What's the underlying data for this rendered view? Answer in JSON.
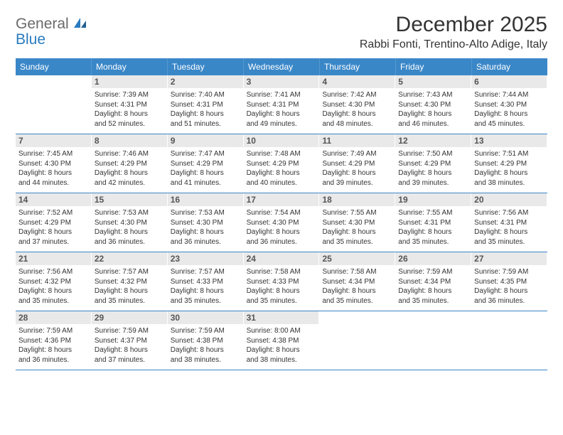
{
  "logo": {
    "text1": "General",
    "text2": "Blue"
  },
  "colors": {
    "header_bg": "#3a87c8",
    "header_text": "#ffffff",
    "daynum_bg": "#e9e9e9",
    "daynum_text": "#555555",
    "text": "#333333",
    "logo_gray": "#6a6a6a",
    "logo_blue": "#2a7bbf",
    "rule": "#3a87c8"
  },
  "title": "December 2025",
  "subtitle": "Rabbi Fonti, Trentino-Alto Adige, Italy",
  "day_names": [
    "Sunday",
    "Monday",
    "Tuesday",
    "Wednesday",
    "Thursday",
    "Friday",
    "Saturday"
  ],
  "weeks": [
    [
      null,
      {
        "n": "1",
        "sr": "Sunrise: 7:39 AM",
        "ss": "Sunset: 4:31 PM",
        "d1": "Daylight: 8 hours",
        "d2": "and 52 minutes."
      },
      {
        "n": "2",
        "sr": "Sunrise: 7:40 AM",
        "ss": "Sunset: 4:31 PM",
        "d1": "Daylight: 8 hours",
        "d2": "and 51 minutes."
      },
      {
        "n": "3",
        "sr": "Sunrise: 7:41 AM",
        "ss": "Sunset: 4:31 PM",
        "d1": "Daylight: 8 hours",
        "d2": "and 49 minutes."
      },
      {
        "n": "4",
        "sr": "Sunrise: 7:42 AM",
        "ss": "Sunset: 4:30 PM",
        "d1": "Daylight: 8 hours",
        "d2": "and 48 minutes."
      },
      {
        "n": "5",
        "sr": "Sunrise: 7:43 AM",
        "ss": "Sunset: 4:30 PM",
        "d1": "Daylight: 8 hours",
        "d2": "and 46 minutes."
      },
      {
        "n": "6",
        "sr": "Sunrise: 7:44 AM",
        "ss": "Sunset: 4:30 PM",
        "d1": "Daylight: 8 hours",
        "d2": "and 45 minutes."
      }
    ],
    [
      {
        "n": "7",
        "sr": "Sunrise: 7:45 AM",
        "ss": "Sunset: 4:30 PM",
        "d1": "Daylight: 8 hours",
        "d2": "and 44 minutes."
      },
      {
        "n": "8",
        "sr": "Sunrise: 7:46 AM",
        "ss": "Sunset: 4:29 PM",
        "d1": "Daylight: 8 hours",
        "d2": "and 42 minutes."
      },
      {
        "n": "9",
        "sr": "Sunrise: 7:47 AM",
        "ss": "Sunset: 4:29 PM",
        "d1": "Daylight: 8 hours",
        "d2": "and 41 minutes."
      },
      {
        "n": "10",
        "sr": "Sunrise: 7:48 AM",
        "ss": "Sunset: 4:29 PM",
        "d1": "Daylight: 8 hours",
        "d2": "and 40 minutes."
      },
      {
        "n": "11",
        "sr": "Sunrise: 7:49 AM",
        "ss": "Sunset: 4:29 PM",
        "d1": "Daylight: 8 hours",
        "d2": "and 39 minutes."
      },
      {
        "n": "12",
        "sr": "Sunrise: 7:50 AM",
        "ss": "Sunset: 4:29 PM",
        "d1": "Daylight: 8 hours",
        "d2": "and 39 minutes."
      },
      {
        "n": "13",
        "sr": "Sunrise: 7:51 AM",
        "ss": "Sunset: 4:29 PM",
        "d1": "Daylight: 8 hours",
        "d2": "and 38 minutes."
      }
    ],
    [
      {
        "n": "14",
        "sr": "Sunrise: 7:52 AM",
        "ss": "Sunset: 4:29 PM",
        "d1": "Daylight: 8 hours",
        "d2": "and 37 minutes."
      },
      {
        "n": "15",
        "sr": "Sunrise: 7:53 AM",
        "ss": "Sunset: 4:30 PM",
        "d1": "Daylight: 8 hours",
        "d2": "and 36 minutes."
      },
      {
        "n": "16",
        "sr": "Sunrise: 7:53 AM",
        "ss": "Sunset: 4:30 PM",
        "d1": "Daylight: 8 hours",
        "d2": "and 36 minutes."
      },
      {
        "n": "17",
        "sr": "Sunrise: 7:54 AM",
        "ss": "Sunset: 4:30 PM",
        "d1": "Daylight: 8 hours",
        "d2": "and 36 minutes."
      },
      {
        "n": "18",
        "sr": "Sunrise: 7:55 AM",
        "ss": "Sunset: 4:30 PM",
        "d1": "Daylight: 8 hours",
        "d2": "and 35 minutes."
      },
      {
        "n": "19",
        "sr": "Sunrise: 7:55 AM",
        "ss": "Sunset: 4:31 PM",
        "d1": "Daylight: 8 hours",
        "d2": "and 35 minutes."
      },
      {
        "n": "20",
        "sr": "Sunrise: 7:56 AM",
        "ss": "Sunset: 4:31 PM",
        "d1": "Daylight: 8 hours",
        "d2": "and 35 minutes."
      }
    ],
    [
      {
        "n": "21",
        "sr": "Sunrise: 7:56 AM",
        "ss": "Sunset: 4:32 PM",
        "d1": "Daylight: 8 hours",
        "d2": "and 35 minutes."
      },
      {
        "n": "22",
        "sr": "Sunrise: 7:57 AM",
        "ss": "Sunset: 4:32 PM",
        "d1": "Daylight: 8 hours",
        "d2": "and 35 minutes."
      },
      {
        "n": "23",
        "sr": "Sunrise: 7:57 AM",
        "ss": "Sunset: 4:33 PM",
        "d1": "Daylight: 8 hours",
        "d2": "and 35 minutes."
      },
      {
        "n": "24",
        "sr": "Sunrise: 7:58 AM",
        "ss": "Sunset: 4:33 PM",
        "d1": "Daylight: 8 hours",
        "d2": "and 35 minutes."
      },
      {
        "n": "25",
        "sr": "Sunrise: 7:58 AM",
        "ss": "Sunset: 4:34 PM",
        "d1": "Daylight: 8 hours",
        "d2": "and 35 minutes."
      },
      {
        "n": "26",
        "sr": "Sunrise: 7:59 AM",
        "ss": "Sunset: 4:34 PM",
        "d1": "Daylight: 8 hours",
        "d2": "and 35 minutes."
      },
      {
        "n": "27",
        "sr": "Sunrise: 7:59 AM",
        "ss": "Sunset: 4:35 PM",
        "d1": "Daylight: 8 hours",
        "d2": "and 36 minutes."
      }
    ],
    [
      {
        "n": "28",
        "sr": "Sunrise: 7:59 AM",
        "ss": "Sunset: 4:36 PM",
        "d1": "Daylight: 8 hours",
        "d2": "and 36 minutes."
      },
      {
        "n": "29",
        "sr": "Sunrise: 7:59 AM",
        "ss": "Sunset: 4:37 PM",
        "d1": "Daylight: 8 hours",
        "d2": "and 37 minutes."
      },
      {
        "n": "30",
        "sr": "Sunrise: 7:59 AM",
        "ss": "Sunset: 4:38 PM",
        "d1": "Daylight: 8 hours",
        "d2": "and 38 minutes."
      },
      {
        "n": "31",
        "sr": "Sunrise: 8:00 AM",
        "ss": "Sunset: 4:38 PM",
        "d1": "Daylight: 8 hours",
        "d2": "and 38 minutes."
      },
      null,
      null,
      null
    ]
  ]
}
